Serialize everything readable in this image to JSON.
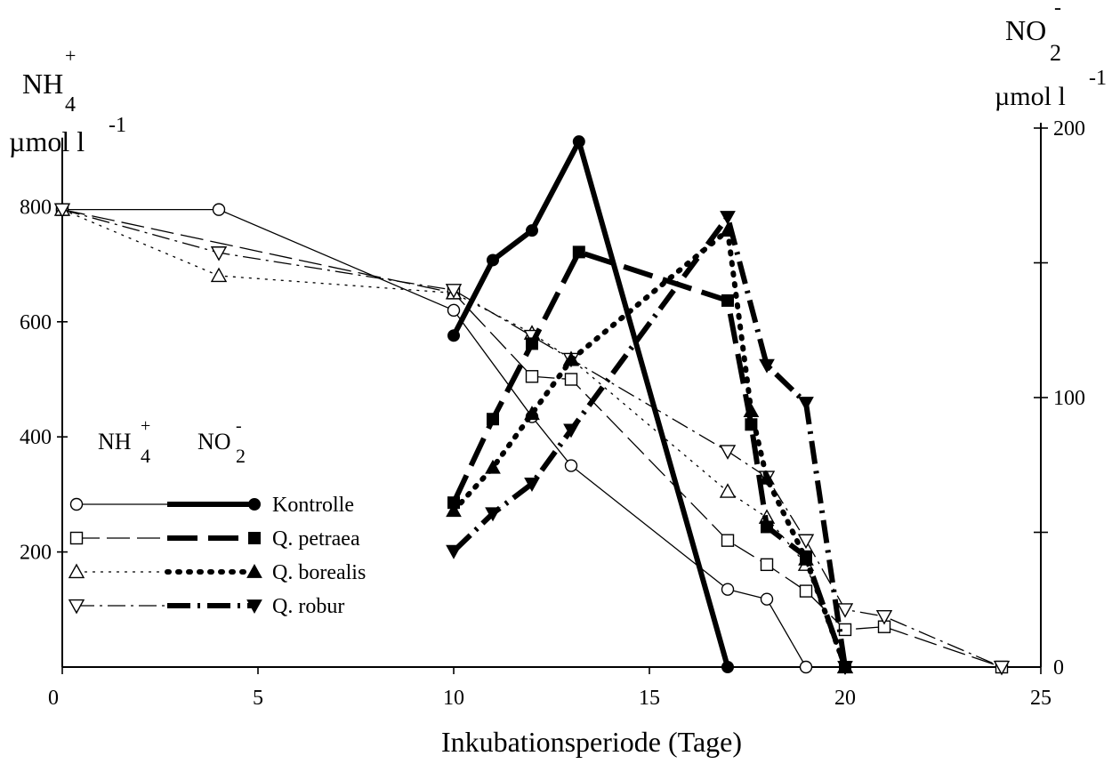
{
  "chart_data": {
    "type": "line",
    "xlabel": "Inkubationsperiode (Tage)",
    "xlim": [
      0,
      25
    ],
    "x_ticks": [
      "0",
      "5",
      "10",
      "15",
      "20",
      "25"
    ],
    "y_left": {
      "label_base": "NH",
      "label_sub": "4",
      "label_sup": "+",
      "unit": "µmol l",
      "unit_sup": "-1",
      "lim": [
        0,
        920
      ],
      "ticks": [
        "200",
        "400",
        "600",
        "800"
      ]
    },
    "y_right": {
      "label_base": "NO",
      "label_sub": "2",
      "label_sup": "-",
      "unit": "µmol l",
      "unit_sup": "-1",
      "lim": [
        0,
        200
      ],
      "ticks": [
        "0",
        "100",
        "200"
      ]
    },
    "legend": {
      "position": "lower-left",
      "col1": {
        "base": "NH",
        "sub": "4",
        "sup": "+"
      },
      "col2": {
        "base": "NO",
        "sub": "2",
        "sup": "-"
      },
      "entries": [
        "Kontrolle",
        "Q. petraea",
        "Q. borealis",
        "Q. robur"
      ]
    },
    "series": [
      {
        "name": "Kontrolle",
        "axis": "left",
        "marker": "circle-open",
        "dash": "solid",
        "x": [
          0,
          4,
          10,
          12,
          13,
          17,
          18,
          19
        ],
        "y": [
          795,
          795,
          620,
          435,
          350,
          135,
          118,
          0
        ]
      },
      {
        "name": "Q. petraea",
        "axis": "left",
        "marker": "square-open",
        "dash": "longdash",
        "x": [
          0,
          10,
          12,
          13,
          17,
          18,
          19,
          20,
          21,
          24
        ],
        "y": [
          795,
          650,
          505,
          500,
          220,
          178,
          132,
          65,
          70,
          0
        ]
      },
      {
        "name": "Q. borealis",
        "axis": "left",
        "marker": "triangle-up-open",
        "dash": "dot",
        "x": [
          0,
          4,
          10,
          12,
          13,
          17,
          18,
          19,
          20
        ],
        "y": [
          795,
          680,
          650,
          580,
          535,
          305,
          260,
          178,
          0
        ]
      },
      {
        "name": "Q. robur",
        "axis": "left",
        "marker": "triangle-down-open",
        "dash": "dashdot",
        "x": [
          0,
          4,
          10,
          12,
          13,
          17,
          18,
          19,
          20,
          21,
          24
        ],
        "y": [
          795,
          720,
          655,
          575,
          535,
          375,
          330,
          220,
          100,
          88,
          0
        ]
      },
      {
        "name": "Kontrolle",
        "axis": "right",
        "marker": "circle-filled",
        "dash": "solid",
        "x": [
          10,
          11,
          12,
          13.2,
          17
        ],
        "y": [
          123,
          151,
          162,
          195,
          0
        ]
      },
      {
        "name": "Q. petraea",
        "axis": "right",
        "marker": "square-filled",
        "dash": "longdash",
        "x": [
          10,
          11,
          12,
          13.2,
          17,
          17.6,
          18,
          19,
          20
        ],
        "y": [
          61,
          92,
          120,
          154,
          136,
          90,
          52,
          41,
          0
        ]
      },
      {
        "name": "Q. borealis",
        "axis": "right",
        "marker": "triangle-up-filled",
        "dash": "dot",
        "x": [
          10,
          11,
          12,
          13,
          17,
          17.6,
          18,
          19,
          20
        ],
        "y": [
          58,
          74,
          94,
          114,
          162,
          95,
          70,
          40,
          0
        ]
      },
      {
        "name": "Q. robur",
        "axis": "right",
        "marker": "triangle-down-filled",
        "dash": "dashdot",
        "x": [
          10,
          11,
          12,
          13,
          17,
          18,
          19,
          20
        ],
        "y": [
          43,
          57,
          68,
          88,
          167,
          112,
          98,
          0
        ]
      }
    ]
  }
}
